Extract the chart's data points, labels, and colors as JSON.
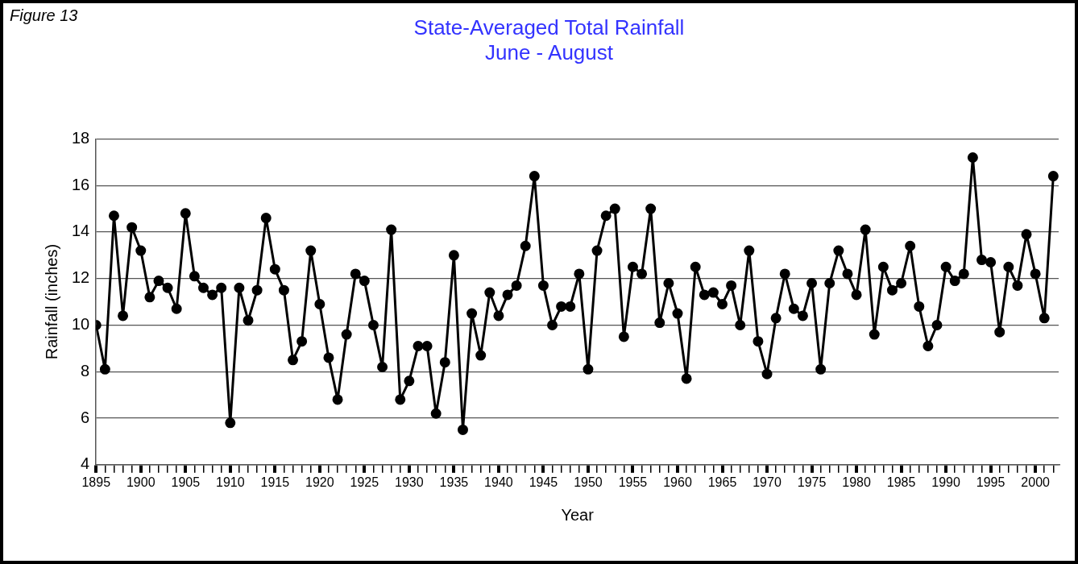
{
  "chart_data": {
    "type": "line",
    "title": "State-Averaged Total Rainfall",
    "subtitle": "June - August",
    "xlabel": "Year",
    "ylabel": "Rainfall (inches)",
    "annotations": [
      "Figure 13"
    ],
    "x": [
      1895,
      1896,
      1897,
      1898,
      1899,
      1900,
      1901,
      1902,
      1903,
      1904,
      1905,
      1906,
      1907,
      1908,
      1909,
      1910,
      1911,
      1912,
      1913,
      1914,
      1915,
      1916,
      1917,
      1918,
      1919,
      1920,
      1921,
      1922,
      1923,
      1924,
      1925,
      1926,
      1927,
      1928,
      1929,
      1930,
      1931,
      1932,
      1933,
      1934,
      1935,
      1936,
      1937,
      1938,
      1939,
      1940,
      1941,
      1942,
      1943,
      1944,
      1945,
      1946,
      1947,
      1948,
      1949,
      1950,
      1951,
      1952,
      1953,
      1954,
      1955,
      1956,
      1957,
      1958,
      1959,
      1960,
      1961,
      1962,
      1963,
      1964,
      1965,
      1966,
      1967,
      1968,
      1969,
      1970,
      1971,
      1972,
      1973,
      1974,
      1975,
      1976,
      1977,
      1978,
      1979,
      1980,
      1981,
      1982,
      1983,
      1984,
      1985,
      1986,
      1987,
      1988,
      1989,
      1990,
      1991,
      1992,
      1993,
      1994,
      1995,
      1996,
      1997,
      1998,
      1999,
      2000,
      2001,
      2002
    ],
    "series": [
      {
        "color": "#000000",
        "values": [
          10.0,
          8.1,
          14.7,
          10.4,
          14.2,
          13.2,
          11.2,
          11.9,
          11.6,
          10.7,
          14.8,
          12.1,
          11.6,
          11.3,
          11.6,
          5.8,
          11.6,
          10.2,
          11.5,
          14.6,
          12.4,
          11.5,
          8.5,
          9.3,
          13.2,
          10.9,
          8.6,
          6.8,
          9.6,
          12.2,
          11.9,
          10.0,
          8.2,
          14.1,
          6.8,
          7.6,
          9.1,
          9.1,
          6.2,
          8.4,
          13.0,
          5.5,
          10.5,
          8.7,
          11.4,
          10.4,
          11.3,
          11.7,
          13.4,
          16.4,
          11.7,
          10.0,
          10.8,
          10.8,
          12.2,
          8.1,
          13.2,
          14.7,
          15.0,
          9.5,
          12.5,
          12.2,
          15.0,
          10.1,
          11.8,
          10.5,
          7.7,
          12.5,
          11.3,
          11.4,
          10.9,
          11.7,
          10.0,
          13.2,
          9.3,
          7.9,
          10.3,
          12.2,
          10.7,
          10.4,
          11.8,
          8.1,
          11.8,
          13.2,
          12.2,
          11.3,
          14.1,
          9.6,
          12.5,
          11.5,
          11.8,
          13.4,
          10.8,
          9.1,
          10.0,
          12.5,
          11.9,
          12.2,
          17.2,
          12.8,
          12.7,
          9.7,
          12.5,
          11.7,
          13.9,
          12.2,
          10.3,
          16.4
        ]
      }
    ],
    "xlim": [
      1895,
      2002.6
    ],
    "xticks": [
      1895,
      {
        "value": 1896,
        "label": null
      },
      {
        "value": 1897,
        "label": null
      },
      {
        "value": 1898,
        "label": null
      },
      {
        "value": 1899,
        "label": null
      },
      1900,
      {
        "value": 1901,
        "label": null
      },
      {
        "value": 1902,
        "label": null
      },
      {
        "value": 1903,
        "label": null
      },
      {
        "value": 1904,
        "label": null
      },
      1905,
      {
        "value": 1906,
        "label": null
      },
      {
        "value": 1907,
        "label": null
      },
      {
        "value": 1908,
        "label": null
      },
      {
        "value": 1909,
        "label": null
      },
      1910,
      {
        "value": 1911,
        "label": null
      },
      {
        "value": 1912,
        "label": null
      },
      {
        "value": 1913,
        "label": null
      },
      {
        "value": 1914,
        "label": null
      },
      1915,
      {
        "value": 1916,
        "label": null
      },
      {
        "value": 1917,
        "label": null
      },
      {
        "value": 1918,
        "label": null
      },
      {
        "value": 1919,
        "label": null
      },
      1920,
      {
        "value": 1921,
        "label": null
      },
      {
        "value": 1922,
        "label": null
      },
      {
        "value": 1923,
        "label": null
      },
      {
        "value": 1924,
        "label": null
      },
      1925,
      {
        "value": 1926,
        "label": null
      },
      {
        "value": 1927,
        "label": null
      },
      {
        "value": 1928,
        "label": null
      },
      {
        "value": 1929,
        "label": null
      },
      1930,
      {
        "value": 1931,
        "label": null
      },
      {
        "value": 1932,
        "label": null
      },
      {
        "value": 1933,
        "label": null
      },
      {
        "value": 1934,
        "label": null
      },
      1935,
      {
        "value": 1936,
        "label": null
      },
      {
        "value": 1937,
        "label": null
      },
      {
        "value": 1938,
        "label": null
      },
      {
        "value": 1939,
        "label": null
      },
      1940,
      {
        "value": 1941,
        "label": null
      },
      {
        "value": 1942,
        "label": null
      },
      {
        "value": 1943,
        "label": null
      },
      {
        "value": 1944,
        "label": null
      },
      1945,
      {
        "value": 1946,
        "label": null
      },
      {
        "value": 1947,
        "label": null
      },
      {
        "value": 1948,
        "label": null
      },
      {
        "value": 1949,
        "label": null
      },
      1950,
      {
        "value": 1951,
        "label": null
      },
      {
        "value": 1952,
        "label": null
      },
      {
        "value": 1953,
        "label": null
      },
      {
        "value": 1954,
        "label": null
      },
      1955,
      {
        "value": 1956,
        "label": null
      },
      {
        "value": 1957,
        "label": null
      },
      {
        "value": 1958,
        "label": null
      },
      {
        "value": 1959,
        "label": null
      },
      1960,
      {
        "value": 1961,
        "label": null
      },
      {
        "value": 1962,
        "label": null
      },
      {
        "value": 1963,
        "label": null
      },
      {
        "value": 1964,
        "label": null
      },
      1965,
      {
        "value": 1966,
        "label": null
      },
      {
        "value": 1967,
        "label": null
      },
      {
        "value": 1968,
        "label": null
      },
      {
        "value": 1969,
        "label": null
      },
      1970,
      {
        "value": 1971,
        "label": null
      },
      {
        "value": 1972,
        "label": null
      },
      {
        "value": 1973,
        "label": null
      },
      {
        "value": 1974,
        "label": null
      },
      1975,
      {
        "value": 1976,
        "label": null
      },
      {
        "value": 1977,
        "label": null
      },
      {
        "value": 1978,
        "label": null
      },
      {
        "value": 1979,
        "label": null
      },
      1980,
      {
        "value": 1981,
        "label": null
      },
      {
        "value": 1982,
        "label": null
      },
      {
        "value": 1983,
        "label": null
      },
      {
        "value": 1984,
        "label": null
      },
      1985,
      {
        "value": 1986,
        "label": null
      },
      {
        "value": 1987,
        "label": null
      },
      {
        "value": 1988,
        "label": null
      },
      {
        "value": 1989,
        "label": null
      },
      1990,
      {
        "value": 1991,
        "label": null
      },
      {
        "value": 1992,
        "label": null
      },
      {
        "value": 1993,
        "label": null
      },
      {
        "value": 1994,
        "label": null
      },
      1995,
      {
        "value": 1996,
        "label": null
      },
      {
        "value": 1997,
        "label": null
      },
      {
        "value": 1998,
        "label": null
      },
      {
        "value": 1999,
        "label": null
      },
      2000,
      {
        "value": 2001,
        "label": null
      },
      {
        "value": 2002,
        "label": null
      }
    ],
    "ylim": [
      4,
      18
    ],
    "yticks": [
      4,
      6,
      8,
      10,
      12,
      14,
      16,
      18
    ],
    "grid": "y",
    "legend": false,
    "marker": "circle",
    "line_style": "solid"
  }
}
